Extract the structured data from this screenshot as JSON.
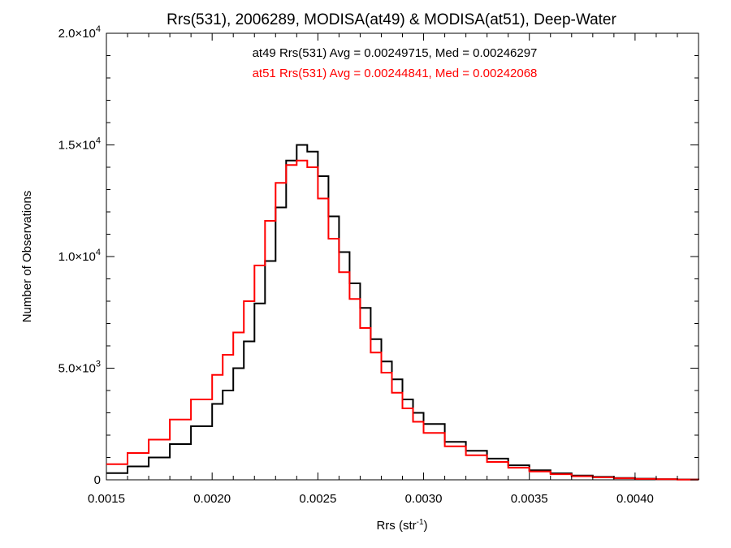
{
  "chart_data": {
    "type": "line",
    "step": true,
    "title": "Rrs(531), 2006289, MODISA(at49) & MODISA(at51), Deep-Water",
    "xlabel": {
      "base": "Rrs (str",
      "sup": "-1",
      "tail": ")"
    },
    "ylabel": "Number of Observations",
    "xlim": [
      0.0015,
      0.0043
    ],
    "ylim": [
      0,
      20000
    ],
    "x_ticks": [
      {
        "value": 0.0015,
        "label": "0.0015"
      },
      {
        "value": 0.002,
        "label": "0.0020"
      },
      {
        "value": 0.0025,
        "label": "0.0025"
      },
      {
        "value": 0.003,
        "label": "0.0030"
      },
      {
        "value": 0.0035,
        "label": "0.0035"
      },
      {
        "value": 0.004,
        "label": "0.0040"
      }
    ],
    "y_ticks": [
      {
        "value": 0,
        "mant": "0",
        "exp": ""
      },
      {
        "value": 5000,
        "mant": "5.0×10",
        "exp": "3"
      },
      {
        "value": 10000,
        "mant": "1.0×10",
        "exp": "4"
      },
      {
        "value": 15000,
        "mant": "1.5×10",
        "exp": "4"
      },
      {
        "value": 20000,
        "mant": "2.0×10",
        "exp": "4"
      }
    ],
    "grid": false,
    "annotations": [
      {
        "text": "at49 Rrs(531) Avg = 0.00249715, Med = 0.00246297",
        "color": "#000000"
      },
      {
        "text": "at51 Rrs(531) Avg = 0.00244841, Med = 0.00242068",
        "color": "#ff0000"
      }
    ],
    "series": [
      {
        "color": "#000000",
        "x": [
          0.0015,
          0.0016,
          0.0017,
          0.0018,
          0.0019,
          0.002,
          0.00205,
          0.0021,
          0.00215,
          0.0022,
          0.00225,
          0.0023,
          0.00235,
          0.0024,
          0.00245,
          0.0025,
          0.00255,
          0.0026,
          0.00265,
          0.0027,
          0.00275,
          0.0028,
          0.00285,
          0.0029,
          0.00295,
          0.003,
          0.0031,
          0.0032,
          0.0033,
          0.0034,
          0.0035,
          0.0036,
          0.0037,
          0.0038,
          0.0039,
          0.004,
          0.0041,
          0.0042,
          0.0043
        ],
        "y": [
          300,
          600,
          1000,
          1600,
          2400,
          3400,
          4000,
          5000,
          6200,
          7900,
          9800,
          12200,
          14300,
          15000,
          14700,
          13600,
          11800,
          10200,
          8800,
          7700,
          6300,
          5300,
          4500,
          3600,
          3000,
          2500,
          1700,
          1300,
          950,
          650,
          430,
          290,
          190,
          130,
          80,
          50,
          30,
          15,
          5
        ]
      },
      {
        "color": "#ff0000",
        "x": [
          0.0015,
          0.0016,
          0.0017,
          0.0018,
          0.0019,
          0.002,
          0.00205,
          0.0021,
          0.00215,
          0.0022,
          0.00225,
          0.0023,
          0.00235,
          0.0024,
          0.00245,
          0.0025,
          0.00255,
          0.0026,
          0.00265,
          0.0027,
          0.00275,
          0.0028,
          0.00285,
          0.0029,
          0.00295,
          0.003,
          0.0031,
          0.0032,
          0.0033,
          0.0034,
          0.0035,
          0.0036,
          0.0037,
          0.0038,
          0.0039,
          0.004,
          0.0041,
          0.0042,
          0.0043
        ],
        "y": [
          700,
          1200,
          1800,
          2700,
          3600,
          4700,
          5600,
          6600,
          8000,
          9600,
          11600,
          13300,
          14100,
          14300,
          14000,
          12600,
          10800,
          9300,
          8100,
          6800,
          5700,
          4800,
          3900,
          3200,
          2600,
          2100,
          1500,
          1100,
          800,
          540,
          370,
          250,
          160,
          110,
          70,
          40,
          25,
          12,
          5
        ]
      }
    ]
  }
}
